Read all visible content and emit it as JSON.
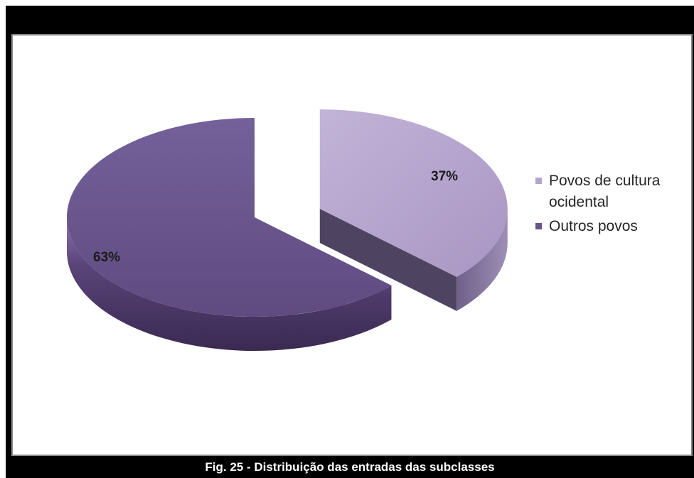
{
  "chart_data": {
    "type": "pie",
    "style": "3d-exploded",
    "title": "",
    "categories": [
      "Povos de cultura ocidental",
      "Outros povos"
    ],
    "values": [
      37,
      63
    ],
    "data_labels": [
      "37%",
      "63%"
    ],
    "legend": {
      "placement": "right",
      "entries": [
        "Povos de cultura ocidental",
        "Outros povos"
      ]
    },
    "colors": [
      "#b6a4cc",
      "#6a5487"
    ],
    "side_colors": [
      "#4c4260",
      "#4a3766"
    ]
  },
  "caption": "Fig. 25 - Distribuição das entradas das subclasses"
}
